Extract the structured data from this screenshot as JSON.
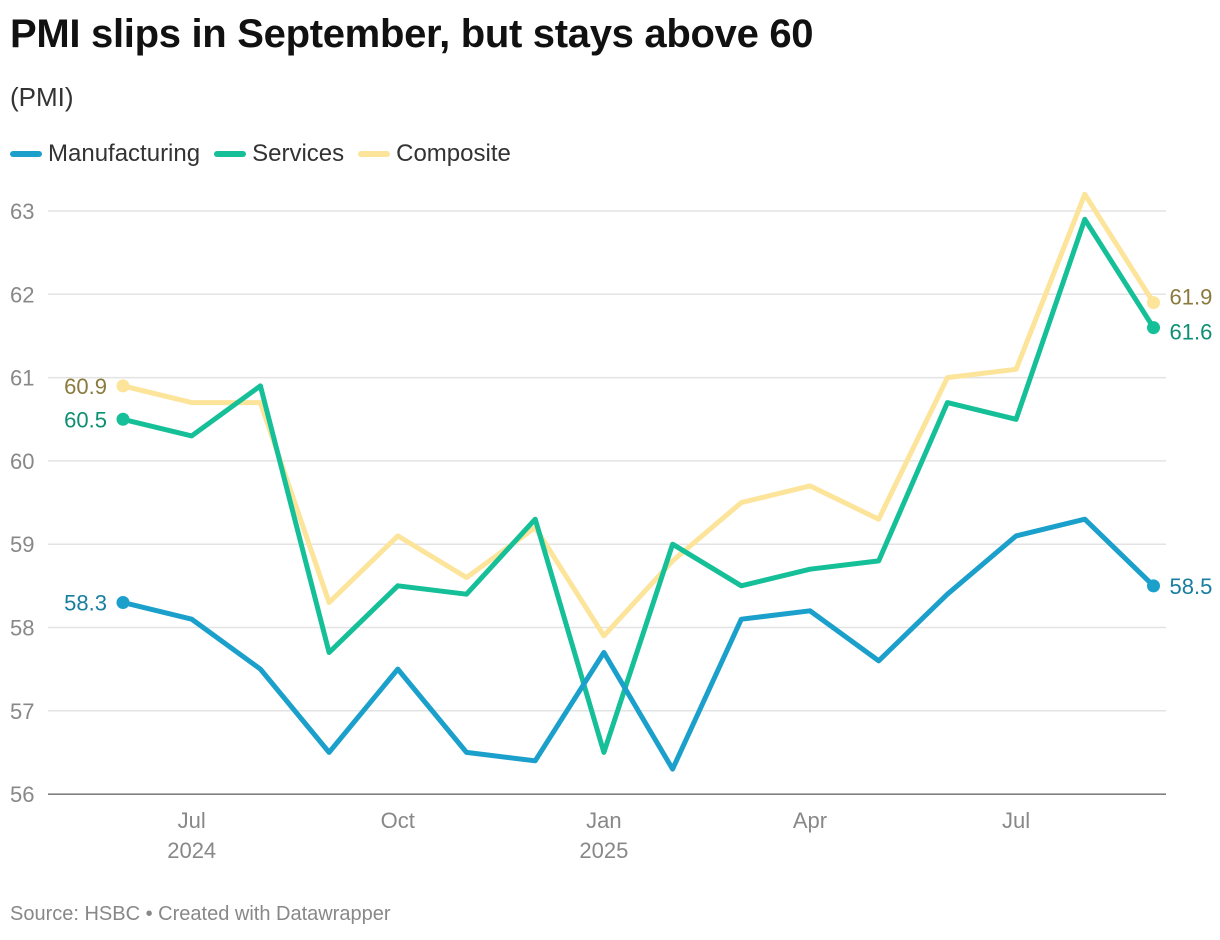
{
  "title": "PMI slips in September, but stays above 60",
  "subtitle": "(PMI)",
  "source": "Source: HSBC • Created with Datawrapper",
  "chart_data": {
    "type": "line",
    "title": "PMI slips in September, but stays above 60",
    "subtitle": "(PMI)",
    "xlabel": "",
    "ylabel": "",
    "ylim": [
      56,
      63
    ],
    "y_ticks": [
      "56",
      "57",
      "58",
      "59",
      "60",
      "61",
      "62",
      "63"
    ],
    "x": [
      "Jun 2024",
      "Jul 2024",
      "Aug 2024",
      "Sep 2024",
      "Oct 2024",
      "Nov 2024",
      "Dec 2024",
      "Jan 2025",
      "Feb 2025",
      "Mar 2025",
      "Apr 2025",
      "May 2025",
      "Jun 2025",
      "Jul 2025",
      "Aug 2025",
      "Sep 2025"
    ],
    "x_ticks": [
      {
        "index": 1,
        "label": "Jul",
        "year": "2024"
      },
      {
        "index": 4,
        "label": "Oct",
        "year": ""
      },
      {
        "index": 7,
        "label": "Jan",
        "year": "2025"
      },
      {
        "index": 10,
        "label": "Apr",
        "year": ""
      },
      {
        "index": 13,
        "label": "Jul",
        "year": ""
      }
    ],
    "grid": true,
    "legend": "top-left",
    "series": [
      {
        "name": "Manufacturing",
        "color": "#1aa0cb",
        "label_color": "#177e9f",
        "values": [
          58.3,
          58.1,
          57.5,
          56.5,
          57.5,
          56.5,
          56.4,
          57.7,
          56.3,
          58.1,
          58.2,
          57.6,
          58.4,
          59.1,
          59.3,
          58.5
        ],
        "start_label": "58.3",
        "end_label": "58.5"
      },
      {
        "name": "Services",
        "color": "#15bf97",
        "label_color": "#0d8f73",
        "values": [
          60.5,
          60.3,
          60.9,
          57.7,
          58.5,
          58.4,
          59.3,
          56.5,
          59.0,
          58.5,
          58.7,
          58.8,
          60.7,
          60.5,
          62.9,
          61.6
        ],
        "start_label": "60.5",
        "end_label": "61.6"
      },
      {
        "name": "Composite",
        "color": "#fce49a",
        "label_color": "#8a7a3d",
        "values": [
          60.9,
          60.7,
          60.7,
          58.3,
          59.1,
          58.6,
          59.2,
          57.9,
          58.8,
          59.5,
          59.7,
          59.3,
          61.0,
          61.1,
          63.2,
          61.9
        ],
        "start_label": "60.9",
        "end_label": "61.9"
      }
    ]
  }
}
